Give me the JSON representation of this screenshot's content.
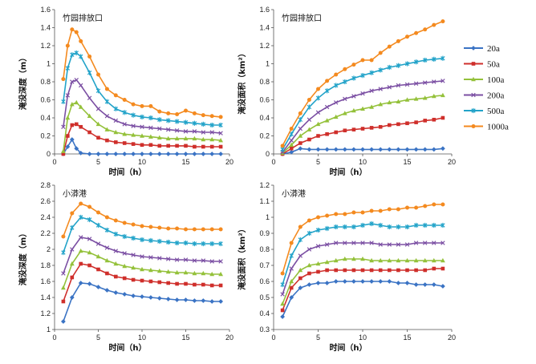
{
  "chart_data": [
    {
      "type": "line",
      "title": "竹园排放口",
      "xlabel": "时间（h）",
      "ylabel": "淹没深度（m）",
      "xlim": [
        0,
        20
      ],
      "ylim": [
        0,
        1.6
      ],
      "xticks": [
        "0",
        "5",
        "10",
        "15",
        "20"
      ],
      "yticks": [
        "0",
        "0.2",
        "0.4",
        "0.6",
        "0.8",
        "1",
        "1.2",
        "1.4",
        "1.6"
      ],
      "x": [
        1,
        1.5,
        2,
        2.5,
        3,
        4,
        5,
        6,
        7,
        8,
        9,
        10,
        11,
        12,
        13,
        14,
        15,
        16,
        17,
        18,
        19
      ],
      "series": [
        {
          "name": "20a",
          "values": [
            0.0,
            0.08,
            0.16,
            0.06,
            0.01,
            0.0,
            0.0,
            0.0,
            0.0,
            0.0,
            0.0,
            0.0,
            0.0,
            0.0,
            0.0,
            0.0,
            0.0,
            0.0,
            0.0,
            0.0,
            0.0
          ]
        },
        {
          "name": "50a",
          "values": [
            0.0,
            0.2,
            0.32,
            0.33,
            0.3,
            0.24,
            0.18,
            0.15,
            0.13,
            0.12,
            0.11,
            0.1,
            0.1,
            0.09,
            0.09,
            0.09,
            0.09,
            0.08,
            0.08,
            0.08,
            0.08
          ]
        },
        {
          "name": "100a",
          "values": [
            0.03,
            0.4,
            0.55,
            0.57,
            0.52,
            0.42,
            0.33,
            0.27,
            0.24,
            0.22,
            0.21,
            0.2,
            0.19,
            0.18,
            0.17,
            0.17,
            0.17,
            0.17,
            0.16,
            0.16,
            0.15
          ]
        },
        {
          "name": "200a",
          "values": [
            0.3,
            0.65,
            0.8,
            0.82,
            0.76,
            0.62,
            0.5,
            0.42,
            0.37,
            0.33,
            0.31,
            0.3,
            0.29,
            0.28,
            0.27,
            0.26,
            0.25,
            0.25,
            0.24,
            0.24,
            0.23
          ]
        },
        {
          "name": "500a",
          "values": [
            0.58,
            0.95,
            1.1,
            1.12,
            1.08,
            0.9,
            0.7,
            0.58,
            0.5,
            0.46,
            0.43,
            0.41,
            0.4,
            0.38,
            0.37,
            0.36,
            0.35,
            0.34,
            0.33,
            0.32,
            0.32
          ]
        },
        {
          "name": "1000a",
          "values": [
            0.83,
            1.2,
            1.38,
            1.35,
            1.25,
            1.08,
            0.88,
            0.72,
            0.65,
            0.6,
            0.55,
            0.53,
            0.53,
            0.47,
            0.45,
            0.44,
            0.48,
            0.45,
            0.43,
            0.42,
            0.41
          ]
        }
      ]
    },
    {
      "type": "line",
      "title": "竹园排放口",
      "xlabel": "时间（h）",
      "ylabel": "淹没面积（km²）",
      "xlim": [
        0,
        20
      ],
      "ylim": [
        0,
        1.6
      ],
      "xticks": [
        "0",
        "5",
        "10",
        "15",
        "20"
      ],
      "yticks": [
        "0",
        "0.2",
        "0.4",
        "0.6",
        "0.8",
        "1",
        "1.2",
        "1.4",
        "1.6"
      ],
      "x": [
        1,
        2,
        3,
        4,
        5,
        6,
        7,
        8,
        9,
        10,
        11,
        12,
        13,
        14,
        15,
        16,
        17,
        18,
        19
      ],
      "series": [
        {
          "name": "20a",
          "values": [
            0.0,
            0.02,
            0.06,
            0.05,
            0.05,
            0.05,
            0.05,
            0.05,
            0.05,
            0.05,
            0.05,
            0.05,
            0.05,
            0.05,
            0.05,
            0.05,
            0.05,
            0.05,
            0.06
          ]
        },
        {
          "name": "50a",
          "values": [
            0.0,
            0.06,
            0.12,
            0.16,
            0.2,
            0.22,
            0.24,
            0.26,
            0.27,
            0.28,
            0.29,
            0.3,
            0.32,
            0.33,
            0.34,
            0.35,
            0.37,
            0.38,
            0.4
          ]
        },
        {
          "name": "100a",
          "values": [
            0.01,
            0.1,
            0.2,
            0.27,
            0.33,
            0.37,
            0.41,
            0.45,
            0.48,
            0.5,
            0.52,
            0.55,
            0.57,
            0.58,
            0.6,
            0.61,
            0.62,
            0.64,
            0.65
          ]
        },
        {
          "name": "200a",
          "values": [
            0.02,
            0.15,
            0.28,
            0.38,
            0.46,
            0.52,
            0.57,
            0.61,
            0.64,
            0.67,
            0.7,
            0.72,
            0.74,
            0.76,
            0.77,
            0.78,
            0.79,
            0.8,
            0.81
          ]
        },
        {
          "name": "500a",
          "values": [
            0.05,
            0.22,
            0.38,
            0.52,
            0.62,
            0.7,
            0.76,
            0.8,
            0.84,
            0.87,
            0.9,
            0.93,
            0.96,
            0.98,
            1.0,
            1.02,
            1.04,
            1.05,
            1.06
          ]
        },
        {
          "name": "1000a",
          "values": [
            0.09,
            0.28,
            0.45,
            0.6,
            0.72,
            0.81,
            0.88,
            0.94,
            0.99,
            1.04,
            1.04,
            1.12,
            1.19,
            1.25,
            1.3,
            1.34,
            1.38,
            1.43,
            1.47
          ]
        }
      ]
    },
    {
      "type": "line",
      "title": "小漭港",
      "xlabel": "时间（h）",
      "ylabel": "淹没深度（m）",
      "xlim": [
        0,
        20
      ],
      "ylim": [
        1,
        2.8
      ],
      "xticks": [
        "0",
        "5",
        "10",
        "15",
        "20"
      ],
      "yticks": [
        "1",
        "1.2",
        "1.4",
        "1.6",
        "1.8",
        "2",
        "2.2",
        "2.4",
        "2.6",
        "2.8"
      ],
      "x": [
        1,
        2,
        3,
        4,
        5,
        6,
        7,
        8,
        9,
        10,
        11,
        12,
        13,
        14,
        15,
        16,
        17,
        18,
        19
      ],
      "series": [
        {
          "name": "50a",
          "values": [
            1.35,
            1.65,
            1.82,
            1.8,
            1.75,
            1.7,
            1.66,
            1.64,
            1.62,
            1.61,
            1.6,
            1.59,
            1.58,
            1.57,
            1.57,
            1.56,
            1.56,
            1.55,
            1.55
          ]
        },
        {
          "name": "20a",
          "values": [
            1.1,
            1.4,
            1.58,
            1.57,
            1.53,
            1.49,
            1.46,
            1.44,
            1.42,
            1.41,
            1.4,
            1.39,
            1.38,
            1.37,
            1.37,
            1.36,
            1.36,
            1.35,
            1.35
          ]
        },
        {
          "name": "100a",
          "values": [
            1.52,
            1.82,
            1.98,
            1.96,
            1.91,
            1.86,
            1.82,
            1.79,
            1.77,
            1.75,
            1.74,
            1.73,
            1.72,
            1.71,
            1.71,
            1.7,
            1.7,
            1.69,
            1.69
          ]
        },
        {
          "name": "200a",
          "values": [
            1.7,
            2.0,
            2.15,
            2.13,
            2.07,
            2.02,
            1.98,
            1.95,
            1.93,
            1.91,
            1.9,
            1.89,
            1.88,
            1.87,
            1.87,
            1.86,
            1.86,
            1.85,
            1.85
          ]
        },
        {
          "name": "500a",
          "values": [
            1.96,
            2.27,
            2.4,
            2.37,
            2.3,
            2.24,
            2.19,
            2.16,
            2.14,
            2.12,
            2.11,
            2.1,
            2.09,
            2.08,
            2.08,
            2.07,
            2.07,
            2.07,
            2.07
          ]
        },
        {
          "name": "1000a",
          "values": [
            2.16,
            2.45,
            2.57,
            2.53,
            2.46,
            2.4,
            2.36,
            2.33,
            2.31,
            2.29,
            2.28,
            2.27,
            2.26,
            2.26,
            2.25,
            2.25,
            2.25,
            2.25,
            2.25
          ]
        }
      ]
    },
    {
      "type": "line",
      "title": "小漭港",
      "xlabel": "时间（h）",
      "ylabel": "淹没面积（km²）",
      "xlim": [
        0,
        20
      ],
      "ylim": [
        0.3,
        1.2
      ],
      "xticks": [
        "0",
        "5",
        "10",
        "15",
        "20"
      ],
      "yticks": [
        "0.3",
        "0.4",
        "0.5",
        "0.6",
        "0.7",
        "0.8",
        "0.9",
        "1",
        "1.1",
        "1.2"
      ],
      "x": [
        1,
        2,
        3,
        4,
        5,
        6,
        7,
        8,
        9,
        10,
        11,
        12,
        13,
        14,
        15,
        16,
        17,
        18,
        19
      ],
      "series": [
        {
          "name": "20a",
          "values": [
            0.38,
            0.5,
            0.56,
            0.58,
            0.59,
            0.59,
            0.6,
            0.6,
            0.6,
            0.6,
            0.6,
            0.6,
            0.6,
            0.59,
            0.59,
            0.58,
            0.58,
            0.58,
            0.57
          ]
        },
        {
          "name": "50a",
          "values": [
            0.42,
            0.56,
            0.62,
            0.65,
            0.66,
            0.67,
            0.67,
            0.67,
            0.67,
            0.67,
            0.67,
            0.67,
            0.67,
            0.67,
            0.67,
            0.67,
            0.67,
            0.68,
            0.68
          ]
        },
        {
          "name": "100a",
          "values": [
            0.46,
            0.6,
            0.67,
            0.7,
            0.71,
            0.72,
            0.73,
            0.74,
            0.74,
            0.74,
            0.73,
            0.73,
            0.73,
            0.73,
            0.73,
            0.73,
            0.73,
            0.73,
            0.73
          ]
        },
        {
          "name": "200a",
          "values": [
            0.52,
            0.68,
            0.76,
            0.8,
            0.82,
            0.83,
            0.84,
            0.84,
            0.84,
            0.84,
            0.84,
            0.83,
            0.83,
            0.83,
            0.83,
            0.84,
            0.84,
            0.84,
            0.84
          ]
        },
        {
          "name": "500a",
          "values": [
            0.58,
            0.76,
            0.86,
            0.9,
            0.92,
            0.93,
            0.94,
            0.94,
            0.94,
            0.95,
            0.96,
            0.95,
            0.94,
            0.94,
            0.94,
            0.95,
            0.95,
            0.95,
            0.95
          ]
        },
        {
          "name": "1000a",
          "values": [
            0.65,
            0.84,
            0.94,
            0.98,
            1.0,
            1.01,
            1.02,
            1.02,
            1.03,
            1.03,
            1.04,
            1.04,
            1.05,
            1.05,
            1.06,
            1.06,
            1.07,
            1.08,
            1.08
          ]
        }
      ]
    }
  ],
  "legend": {
    "placement": "right",
    "items": [
      {
        "label": "20a",
        "color": "#3a73c4",
        "marker": "diamond"
      },
      {
        "label": "50a",
        "color": "#cf2f2b",
        "marker": "square"
      },
      {
        "label": "100a",
        "color": "#94c13a",
        "marker": "triangle"
      },
      {
        "label": "200a",
        "color": "#7b4fa3",
        "marker": "x"
      },
      {
        "label": "500a",
        "color": "#22a3c9",
        "marker": "star"
      },
      {
        "label": "1000a",
        "color": "#f48a1f",
        "marker": "circle"
      }
    ]
  }
}
